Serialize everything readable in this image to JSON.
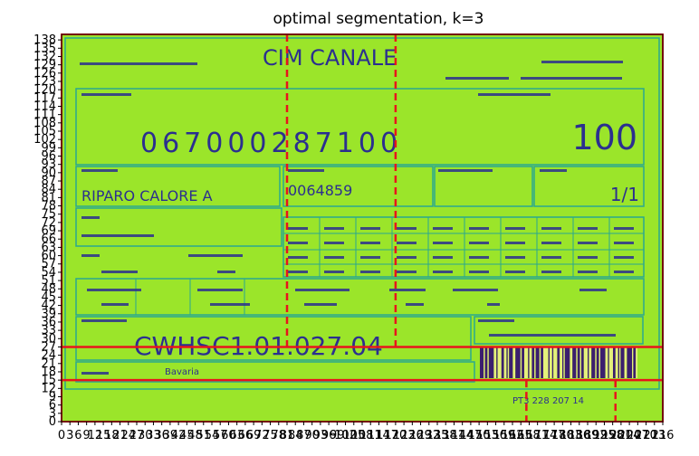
{
  "chart_data": {
    "type": "heatmap",
    "title": "optimal segmentation, k=3",
    "xlabel": "",
    "ylabel": "",
    "xlim": [
      0,
      216
    ],
    "ylim": [
      0,
      140
    ],
    "x_ticks": [
      0,
      3,
      6,
      9,
      12,
      15,
      18,
      21,
      24,
      27,
      30,
      33,
      36,
      39,
      42,
      45,
      48,
      51,
      54,
      57,
      60,
      63,
      66,
      69,
      72,
      75,
      78,
      81,
      84,
      87,
      90,
      93,
      96,
      99,
      102,
      105,
      108,
      111,
      114,
      117,
      120,
      123,
      126,
      129,
      132,
      135,
      138,
      141,
      144,
      147,
      150,
      153,
      156,
      159,
      162,
      165,
      168,
      171,
      174,
      177,
      180,
      183,
      186,
      189,
      192,
      195,
      198,
      201,
      204,
      207,
      210,
      213,
      216
    ],
    "y_ticks": [
      0,
      3,
      6,
      9,
      12,
      15,
      18,
      21,
      24,
      27,
      30,
      33,
      36,
      39,
      42,
      45,
      48,
      51,
      54,
      57,
      60,
      63,
      66,
      69,
      72,
      75,
      78,
      81,
      84,
      87,
      90,
      93,
      96,
      99,
      102,
      105,
      108,
      111,
      114,
      117,
      120,
      123,
      126,
      129,
      132,
      135,
      138
    ],
    "segment_lines": {
      "horizontal_solid": [
        15,
        27
      ],
      "vertical_dashed_upper": [
        81,
        120
      ],
      "vertical_dashed_lower": [
        167,
        199
      ],
      "horizontal_color": "#e8141c",
      "vertical_color": "#e8141c"
    },
    "label_texts": {
      "brand": "CIM CANALE",
      "code_number": "067000287100",
      "quantity": "100",
      "description": "RIPARO CALORE A",
      "lot": "0064859",
      "fraction": "1/1",
      "serial": "CWHSC1.01.027.04",
      "materiale": "Bavaria",
      "barcode_text": "PT3 228 207 14"
    },
    "colors": {
      "background": "#9be52a",
      "field": "#2aa890",
      "ink": "#2b2f8f",
      "barcode_dark": "#3b1f6e"
    }
  }
}
